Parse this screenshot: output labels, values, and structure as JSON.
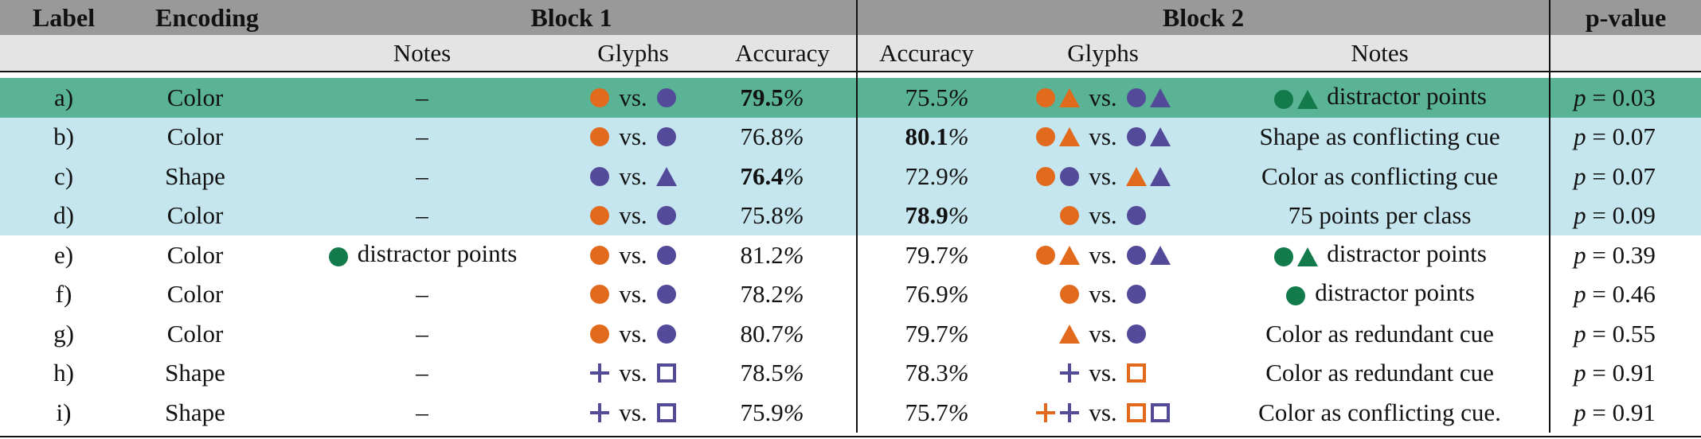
{
  "header": {
    "label": "Label",
    "encoding": "Encoding",
    "block1": "Block 1",
    "block2": "Block 2",
    "pvalue": "p-value",
    "notes1": "Notes",
    "glyphs1": "Glyphs",
    "accuracy1": "Accuracy",
    "accuracy2": "Accuracy",
    "glyphs2": "Glyphs",
    "notes2": "Notes"
  },
  "colors": {
    "orange": "#e26a1d",
    "purple": "#544a9a",
    "green": "#137a4b",
    "row_highlight": "#5ab394",
    "row_lightblue": "#c5e6ee"
  },
  "vs_text": "vs.",
  "rows": [
    {
      "label": "a)",
      "encoding": "Color",
      "notes1": "–",
      "acc1": "79.5",
      "acc1_bold": true,
      "acc2": "75.5",
      "acc2_bold": false,
      "notes2": "distractor points",
      "pvalue": "0.03",
      "glyphs1_left": [
        "circle-orange"
      ],
      "glyphs1_right": [
        "circle-purple"
      ],
      "glyphs2_left": [
        "circle-orange",
        "triangle-orange"
      ],
      "glyphs2_right": [
        "circle-purple",
        "triangle-purple"
      ],
      "notes2_glyphs": [
        "circle-green",
        "triangle-green"
      ],
      "notes1_glyphs": []
    },
    {
      "label": "b)",
      "encoding": "Color",
      "notes1": "–",
      "acc1": "76.8",
      "acc1_bold": false,
      "acc2": "80.1",
      "acc2_bold": true,
      "notes2": "Shape as conflicting cue",
      "pvalue": "0.07",
      "glyphs1_left": [
        "circle-orange"
      ],
      "glyphs1_right": [
        "circle-purple"
      ],
      "glyphs2_left": [
        "circle-orange",
        "triangle-orange"
      ],
      "glyphs2_right": [
        "circle-purple",
        "triangle-purple"
      ],
      "notes2_glyphs": [],
      "notes1_glyphs": []
    },
    {
      "label": "c)",
      "encoding": "Shape",
      "notes1": "–",
      "acc1": "76.4",
      "acc1_bold": true,
      "acc2": "72.9",
      "acc2_bold": false,
      "notes2": "Color as conflicting cue",
      "pvalue": "0.07",
      "glyphs1_left": [
        "circle-purple"
      ],
      "glyphs1_right": [
        "triangle-purple"
      ],
      "glyphs2_left": [
        "circle-orange",
        "circle-purple"
      ],
      "glyphs2_right": [
        "triangle-orange",
        "triangle-purple"
      ],
      "notes2_glyphs": [],
      "notes1_glyphs": []
    },
    {
      "label": "d)",
      "encoding": "Color",
      "notes1": "–",
      "acc1": "75.8",
      "acc1_bold": false,
      "acc2": "78.9",
      "acc2_bold": true,
      "notes2": "75 points per class",
      "pvalue": "0.09",
      "glyphs1_left": [
        "circle-orange"
      ],
      "glyphs1_right": [
        "circle-purple"
      ],
      "glyphs2_left": [
        "circle-orange"
      ],
      "glyphs2_right": [
        "circle-purple"
      ],
      "notes2_glyphs": [],
      "notes1_glyphs": []
    },
    {
      "label": "e)",
      "encoding": "Color",
      "notes1": "distractor points",
      "acc1": "81.2",
      "acc1_bold": false,
      "acc2": "79.7",
      "acc2_bold": false,
      "notes2": "distractor points",
      "pvalue": "0.39",
      "glyphs1_left": [
        "circle-orange"
      ],
      "glyphs1_right": [
        "circle-purple"
      ],
      "glyphs2_left": [
        "circle-orange",
        "triangle-orange"
      ],
      "glyphs2_right": [
        "circle-purple",
        "triangle-purple"
      ],
      "notes2_glyphs": [
        "circle-green",
        "triangle-green"
      ],
      "notes1_glyphs": [
        "circle-green"
      ]
    },
    {
      "label": "f)",
      "encoding": "Color",
      "notes1": "–",
      "acc1": "78.2",
      "acc1_bold": false,
      "acc2": "76.9",
      "acc2_bold": false,
      "notes2": "distractor points",
      "pvalue": "0.46",
      "glyphs1_left": [
        "circle-orange"
      ],
      "glyphs1_right": [
        "circle-purple"
      ],
      "glyphs2_left": [
        "circle-orange"
      ],
      "glyphs2_right": [
        "circle-purple"
      ],
      "notes2_glyphs": [
        "circle-green"
      ],
      "notes1_glyphs": []
    },
    {
      "label": "g)",
      "encoding": "Color",
      "notes1": "–",
      "acc1": "80.7",
      "acc1_bold": false,
      "acc2": "79.7",
      "acc2_bold": false,
      "notes2": "Color as redundant cue",
      "pvalue": "0.55",
      "glyphs1_left": [
        "circle-orange"
      ],
      "glyphs1_right": [
        "circle-purple"
      ],
      "glyphs2_left": [
        "triangle-orange"
      ],
      "glyphs2_right": [
        "circle-purple"
      ],
      "notes2_glyphs": [],
      "notes1_glyphs": []
    },
    {
      "label": "h)",
      "encoding": "Shape",
      "notes1": "–",
      "acc1": "78.5",
      "acc1_bold": false,
      "acc2": "78.3",
      "acc2_bold": false,
      "notes2": "Color as redundant cue",
      "pvalue": "0.91",
      "glyphs1_left": [
        "plus-purple"
      ],
      "glyphs1_right": [
        "square-purple"
      ],
      "glyphs2_left": [
        "plus-purple"
      ],
      "glyphs2_right": [
        "square-orange"
      ],
      "notes2_glyphs": [],
      "notes1_glyphs": []
    },
    {
      "label": "i)",
      "encoding": "Shape",
      "notes1": "–",
      "acc1": "75.9",
      "acc1_bold": false,
      "acc2": "75.7",
      "acc2_bold": false,
      "notes2": "Color as conflicting cue.",
      "pvalue": "0.91",
      "glyphs1_left": [
        "plus-purple"
      ],
      "glyphs1_right": [
        "square-purple"
      ],
      "glyphs2_left": [
        "plus-orange",
        "plus-purple"
      ],
      "glyphs2_right": [
        "square-orange",
        "square-purple"
      ],
      "notes2_glyphs": [],
      "notes1_glyphs": []
    }
  ]
}
